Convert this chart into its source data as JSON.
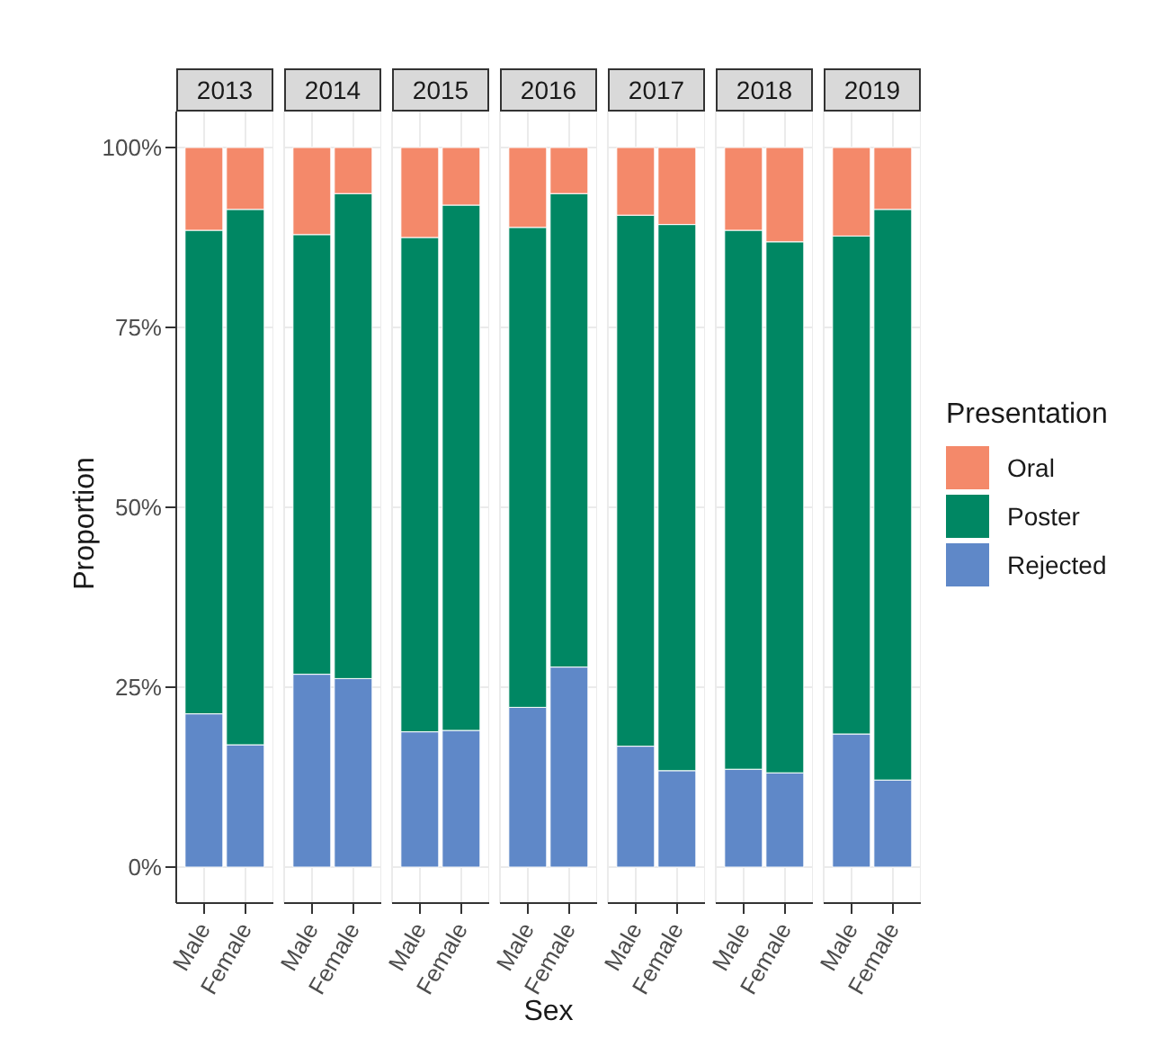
{
  "chart_data": [
    {
      "type": "bar",
      "title": "2013",
      "ylabel": "Proportion",
      "categories": [
        "Male",
        "Female"
      ],
      "stacked": true,
      "grid": true,
      "ylim": [
        -5,
        105
      ],
      "yticks": [
        {
          "value": 0,
          "label": "0%"
        },
        {
          "value": 25,
          "label": "25%"
        },
        {
          "value": 50,
          "label": "50%"
        },
        {
          "value": 75,
          "label": "75%"
        },
        {
          "value": 100,
          "label": "100%"
        }
      ],
      "series": [
        {
          "color": "#5f88c8",
          "values": [
            21.3,
            17.0
          ]
        },
        {
          "color": "#008763",
          "values": [
            67.2,
            74.4
          ]
        },
        {
          "color": "#f4896a",
          "values": [
            11.5,
            8.6
          ]
        }
      ]
    },
    {
      "type": "bar",
      "title": "2014",
      "categories": [
        "Male",
        "Female"
      ],
      "stacked": true,
      "grid": true,
      "tick_labels": "x",
      "ylim": [
        -5,
        105
      ],
      "series": [
        {
          "color": "#5f88c8",
          "values": [
            26.8,
            26.2
          ]
        },
        {
          "color": "#008763",
          "values": [
            61.1,
            67.4
          ]
        },
        {
          "color": "#f4896a",
          "values": [
            12.1,
            6.4
          ]
        }
      ]
    },
    {
      "type": "bar",
      "title": "2015",
      "categories": [
        "Male",
        "Female"
      ],
      "stacked": true,
      "grid": true,
      "tick_labels": "x",
      "ylim": [
        -5,
        105
      ],
      "series": [
        {
          "color": "#5f88c8",
          "values": [
            18.8,
            19.0
          ]
        },
        {
          "color": "#008763",
          "values": [
            68.7,
            73.0
          ]
        },
        {
          "color": "#f4896a",
          "values": [
            12.5,
            8.0
          ]
        }
      ]
    },
    {
      "type": "bar",
      "title": "2016",
      "xlabel": "Sex",
      "categories": [
        "Male",
        "Female"
      ],
      "stacked": true,
      "grid": true,
      "tick_labels": "x",
      "ylim": [
        -5,
        105
      ],
      "series": [
        {
          "color": "#5f88c8",
          "values": [
            22.2,
            27.8
          ]
        },
        {
          "color": "#008763",
          "values": [
            66.7,
            65.8
          ]
        },
        {
          "color": "#f4896a",
          "values": [
            11.1,
            6.4
          ]
        }
      ]
    },
    {
      "type": "bar",
      "title": "2017",
      "categories": [
        "Male",
        "Female"
      ],
      "stacked": true,
      "grid": true,
      "tick_labels": "x",
      "ylim": [
        -5,
        105
      ],
      "series": [
        {
          "color": "#5f88c8",
          "values": [
            16.8,
            13.4
          ]
        },
        {
          "color": "#008763",
          "values": [
            73.8,
            75.9
          ]
        },
        {
          "color": "#f4896a",
          "values": [
            9.4,
            10.7
          ]
        }
      ]
    },
    {
      "type": "bar",
      "title": "2018",
      "categories": [
        "Male",
        "Female"
      ],
      "stacked": true,
      "grid": true,
      "tick_labels": "x",
      "ylim": [
        -5,
        105
      ],
      "series": [
        {
          "color": "#5f88c8",
          "values": [
            13.6,
            13.1
          ]
        },
        {
          "color": "#008763",
          "values": [
            74.9,
            73.8
          ]
        },
        {
          "color": "#f4896a",
          "values": [
            11.5,
            13.1
          ]
        }
      ]
    },
    {
      "type": "bar",
      "title": "2019",
      "categories": [
        "Male",
        "Female"
      ],
      "stacked": true,
      "grid": true,
      "tick_labels": "x",
      "ylim": [
        -5,
        105
      ],
      "legend": "right",
      "legend_title": "Presentation",
      "series": [
        {
          "name": "Rejected",
          "color": "#5f88c8",
          "values": [
            18.5,
            12.1
          ]
        },
        {
          "name": "Poster",
          "color": "#008763",
          "values": [
            69.2,
            79.3
          ]
        },
        {
          "name": "Oral",
          "color": "#f4896a",
          "values": [
            12.3,
            8.6
          ]
        }
      ]
    }
  ]
}
